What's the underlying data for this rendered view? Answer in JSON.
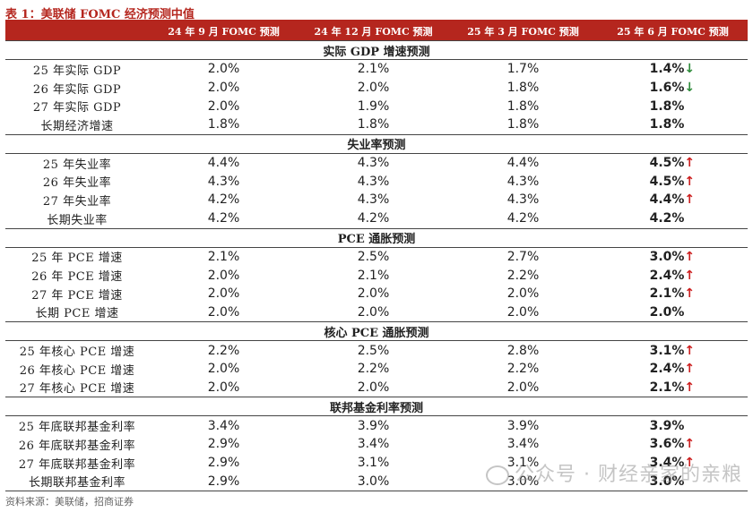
{
  "title": "表 1：美联储 FOMC 经济预测中值",
  "columns": [
    "",
    "24 年 9 月 FOMC 预测",
    "24 年 12 月 FOMC 预测",
    "25 年 3 月 FOMC 预测",
    "25 年 6 月 FOMC 预测"
  ],
  "sections": [
    {
      "heading": "实际 GDP 增速预测",
      "rows": [
        {
          "label": "25 年实际 GDP",
          "v1": "2.0%",
          "v2": "2.1%",
          "v3": "1.7%",
          "v4": "1.4%",
          "arrow": "↓",
          "dir": "down"
        },
        {
          "label": "26 年实际 GDP",
          "v1": "2.0%",
          "v2": "2.0%",
          "v3": "1.8%",
          "v4": "1.6%",
          "arrow": "↓",
          "dir": "down"
        },
        {
          "label": "27 年实际 GDP",
          "v1": "2.0%",
          "v2": "1.9%",
          "v3": "1.8%",
          "v4": "1.8%",
          "arrow": "",
          "dir": ""
        },
        {
          "label": "长期经济增速",
          "v1": "1.8%",
          "v2": "1.8%",
          "v3": "1.8%",
          "v4": "1.8%",
          "arrow": "",
          "dir": ""
        }
      ]
    },
    {
      "heading": "失业率预测",
      "rows": [
        {
          "label": "25 年失业率",
          "v1": "4.4%",
          "v2": "4.3%",
          "v3": "4.4%",
          "v4": "4.5%",
          "arrow": "↑",
          "dir": "up"
        },
        {
          "label": "26 年失业率",
          "v1": "4.3%",
          "v2": "4.3%",
          "v3": "4.3%",
          "v4": "4.5%",
          "arrow": "↑",
          "dir": "up"
        },
        {
          "label": "27 年失业率",
          "v1": "4.2%",
          "v2": "4.3%",
          "v3": "4.3%",
          "v4": "4.4%",
          "arrow": "↑",
          "dir": "up"
        },
        {
          "label": "长期失业率",
          "v1": "4.2%",
          "v2": "4.2%",
          "v3": "4.2%",
          "v4": "4.2%",
          "arrow": "",
          "dir": ""
        }
      ]
    },
    {
      "heading": "PCE 通胀预测",
      "rows": [
        {
          "label": "25 年 PCE 增速",
          "v1": "2.1%",
          "v2": "2.5%",
          "v3": "2.7%",
          "v4": "3.0%",
          "arrow": "↑",
          "dir": "up"
        },
        {
          "label": "26 年 PCE 增速",
          "v1": "2.0%",
          "v2": "2.1%",
          "v3": "2.2%",
          "v4": "2.4%",
          "arrow": "↑",
          "dir": "up"
        },
        {
          "label": "27 年 PCE 增速",
          "v1": "2.0%",
          "v2": "2.0%",
          "v3": "2.0%",
          "v4": "2.1%",
          "arrow": "↑",
          "dir": "up"
        },
        {
          "label": "长期 PCE 增速",
          "v1": "2.0%",
          "v2": "2.0%",
          "v3": "2.0%",
          "v4": "2.0%",
          "arrow": "",
          "dir": ""
        }
      ]
    },
    {
      "heading": "核心 PCE 通胀预测",
      "rows": [
        {
          "label": "25 年核心 PCE 增速",
          "v1": "2.2%",
          "v2": "2.5%",
          "v3": "2.8%",
          "v4": "3.1%",
          "arrow": "↑",
          "dir": "up"
        },
        {
          "label": "26 年核心 PCE 增速",
          "v1": "2.0%",
          "v2": "2.2%",
          "v3": "2.2%",
          "v4": "2.4%",
          "arrow": "↑",
          "dir": "up"
        },
        {
          "label": "27 年核心 PCE 增速",
          "v1": "2.0%",
          "v2": "2.0%",
          "v3": "2.0%",
          "v4": "2.1%",
          "arrow": "↑",
          "dir": "up"
        }
      ]
    },
    {
      "heading": "联邦基金利率预测",
      "rows": [
        {
          "label": "25 年底联邦基金利率",
          "v1": "3.4%",
          "v2": "3.9%",
          "v3": "3.9%",
          "v4": "3.9%",
          "arrow": "",
          "dir": ""
        },
        {
          "label": "26 年底联邦基金利率",
          "v1": "2.9%",
          "v2": "3.4%",
          "v3": "3.4%",
          "v4": "3.6%",
          "arrow": "↑",
          "dir": "up"
        },
        {
          "label": "27 年底联邦基金利率",
          "v1": "2.9%",
          "v2": "3.1%",
          "v3": "3.1%",
          "v4": "3.4%",
          "arrow": "↑",
          "dir": "up"
        },
        {
          "label": "长期联邦基金利率",
          "v1": "2.9%",
          "v2": "3.0%",
          "v3": "3.0%",
          "v4": "3.0%",
          "arrow": "",
          "dir": ""
        }
      ]
    }
  ],
  "source": "资料来源：美联储，招商证券",
  "watermark": "公众号 · 财经亲家的亲粮"
}
